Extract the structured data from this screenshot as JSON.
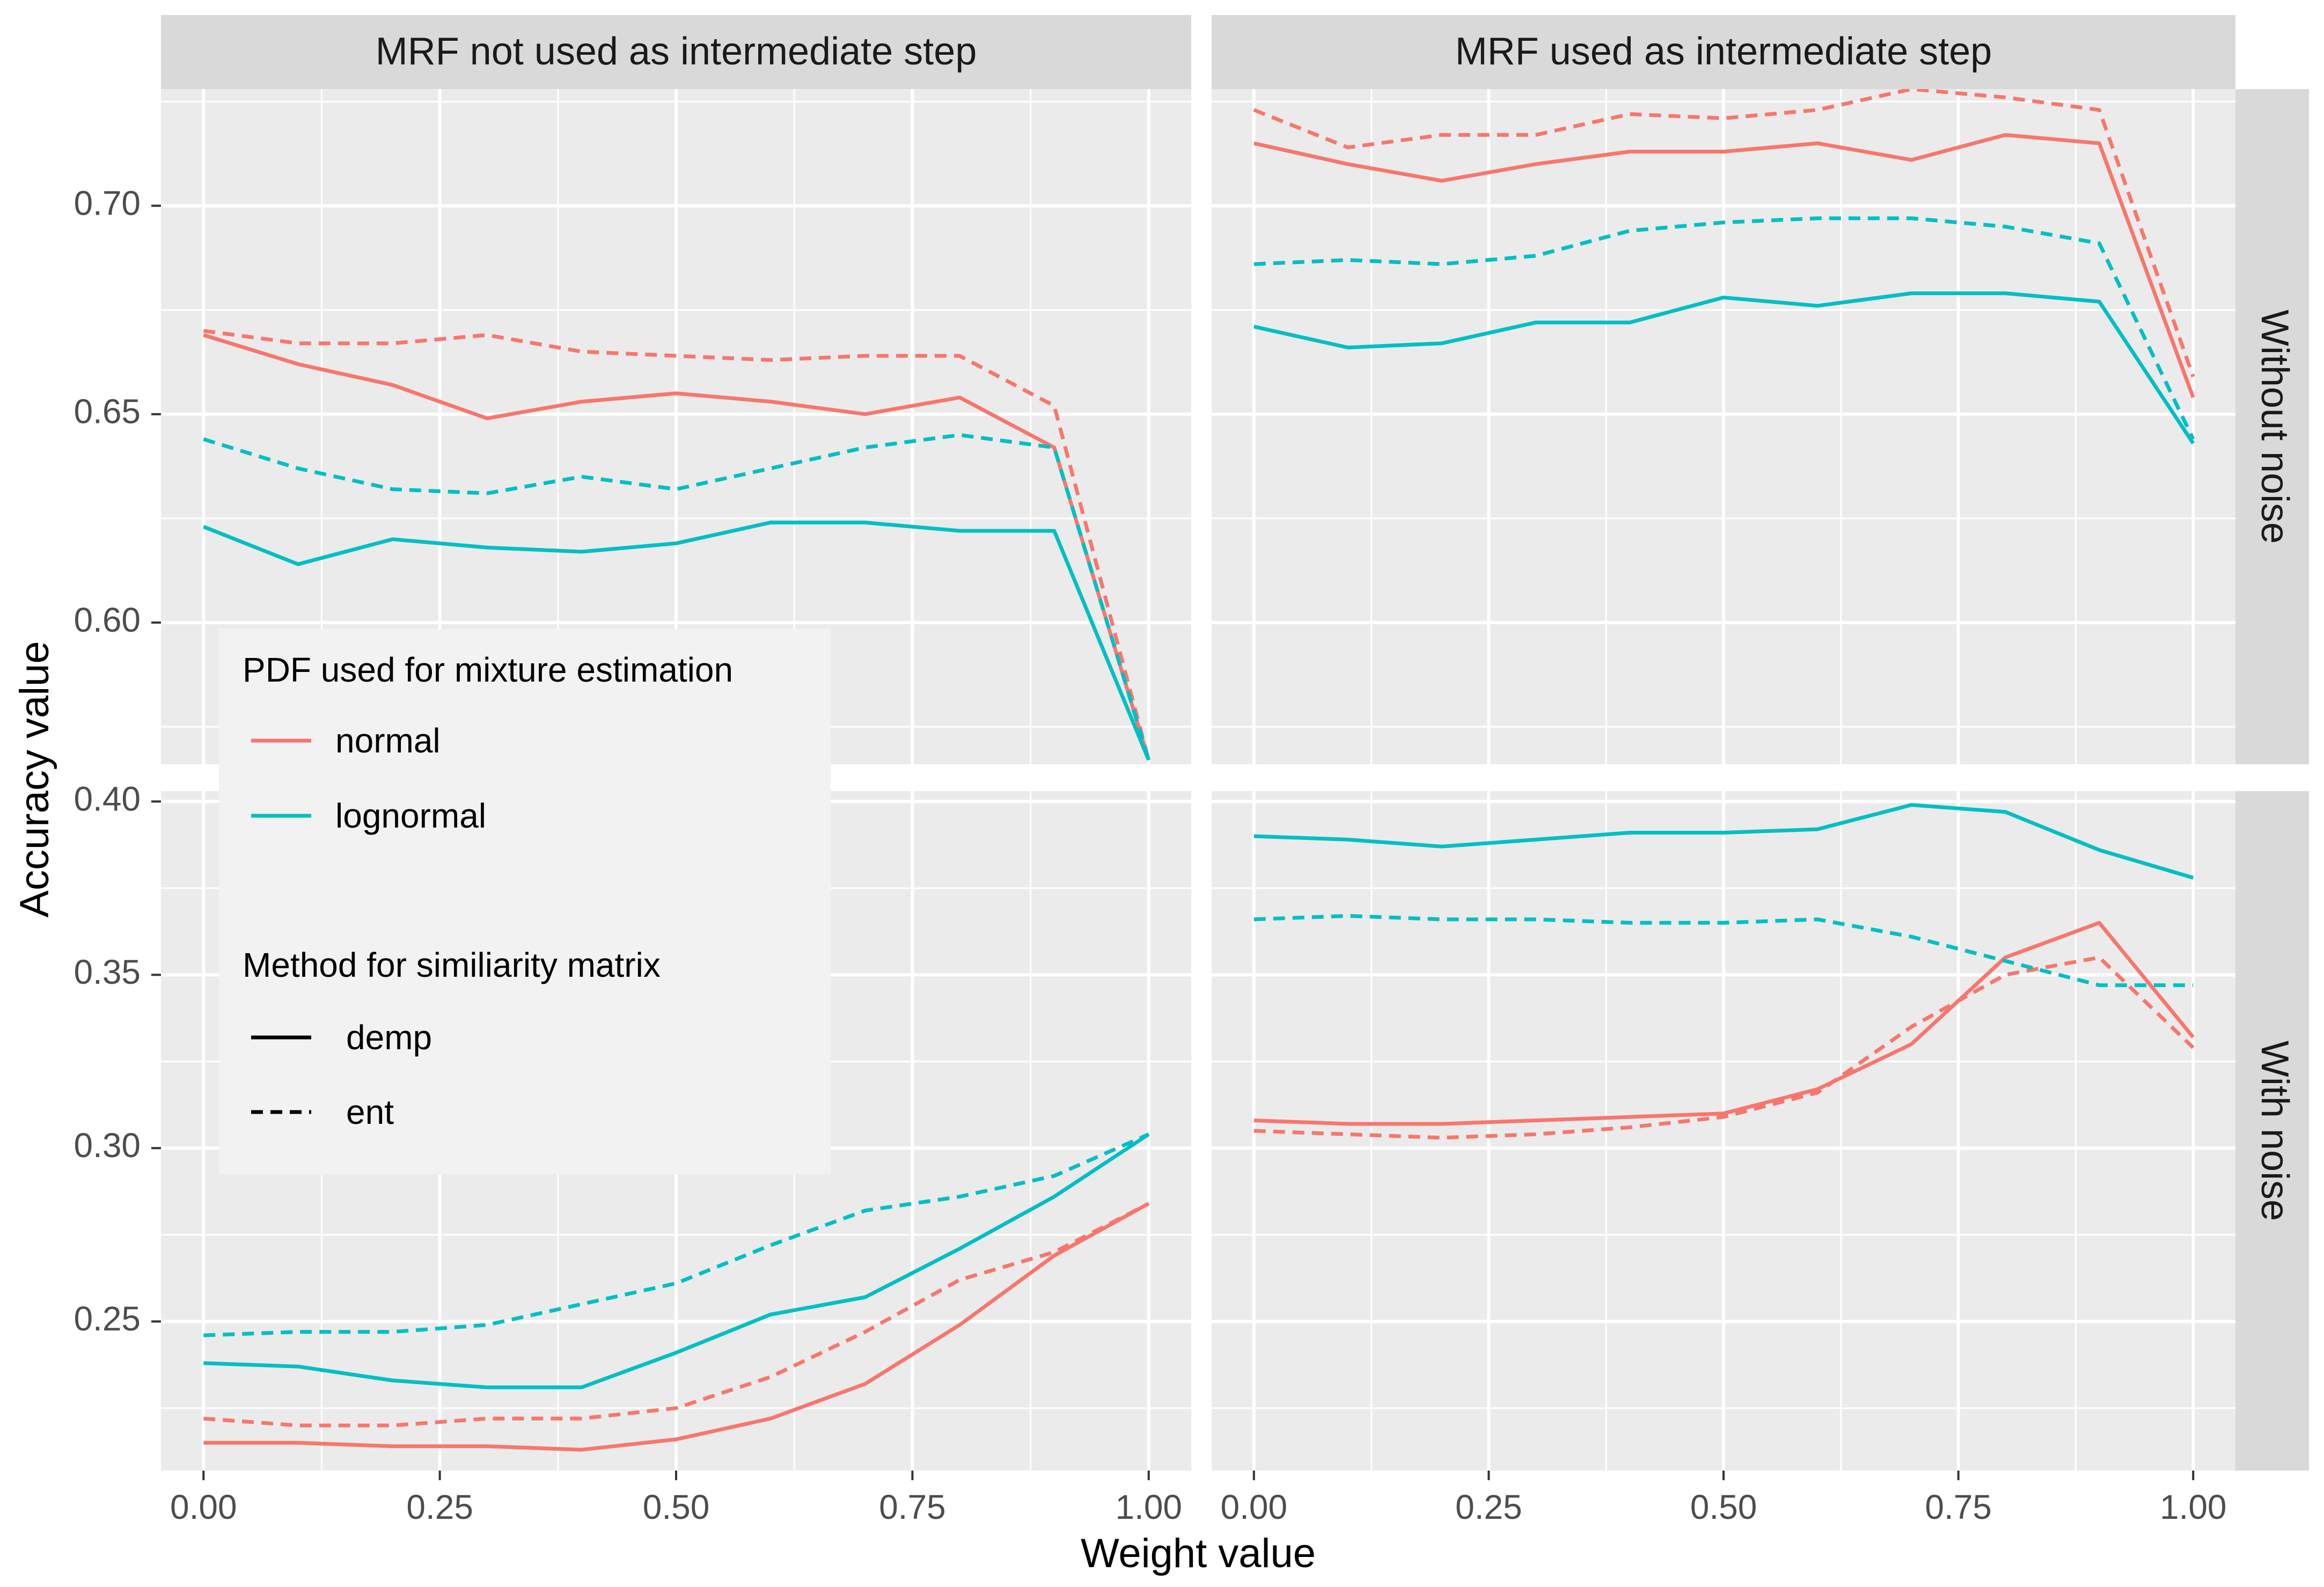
{
  "chart_data": {
    "type": "line",
    "xlabel": "Weight value",
    "ylabel": "Accuracy value",
    "columns": [
      "MRF not used as intermediate step",
      "MRF used as intermediate step"
    ],
    "rows": [
      "Without noise",
      "With noise"
    ],
    "x": [
      0.0,
      0.1,
      0.2,
      0.3,
      0.4,
      0.5,
      0.6,
      0.7,
      0.8,
      0.9,
      1.0
    ],
    "x_ticks": [
      "0.00",
      "0.25",
      "0.50",
      "0.75",
      "1.00"
    ],
    "x_tick_values": [
      0.0,
      0.25,
      0.5,
      0.75,
      1.0
    ],
    "xlim": [
      -0.045,
      1.045
    ],
    "row_scales": [
      {
        "ylim": [
          0.566,
          0.728
        ],
        "ticks": [
          "0.60",
          "0.65",
          "0.70"
        ],
        "tick_values": [
          0.6,
          0.65,
          0.7
        ]
      },
      {
        "ylim": [
          0.207,
          0.403
        ],
        "ticks": [
          "0.25",
          "0.30",
          "0.35",
          "0.40"
        ],
        "tick_values": [
          0.25,
          0.3,
          0.35,
          0.4
        ]
      }
    ],
    "colors": {
      "normal": "#F8766D",
      "lognormal": "#00BFC4"
    },
    "legend": {
      "pdf_title": "PDF used for mixture estimation",
      "pdf_items": [
        {
          "key": "normal",
          "label": "normal",
          "color": "#F8766D"
        },
        {
          "key": "lognormal",
          "label": "lognormal",
          "color": "#00BFC4"
        }
      ],
      "method_title": "Method for similiarity matrix",
      "method_items": [
        {
          "key": "demp",
          "label": "demp",
          "dash": "solid"
        },
        {
          "key": "ent",
          "label": "ent",
          "dash": "dashed"
        }
      ]
    },
    "panels": [
      {
        "column": 0,
        "row": 0,
        "series": [
          {
            "pdf": "normal",
            "method": "demp",
            "values": [
              0.669,
              0.662,
              0.657,
              0.649,
              0.653,
              0.655,
              0.653,
              0.65,
              0.654,
              0.642,
              0.567
            ]
          },
          {
            "pdf": "normal",
            "method": "ent",
            "values": [
              0.67,
              0.667,
              0.667,
              0.669,
              0.665,
              0.664,
              0.663,
              0.664,
              0.664,
              0.652,
              0.567
            ]
          },
          {
            "pdf": "lognormal",
            "method": "demp",
            "values": [
              0.623,
              0.614,
              0.62,
              0.618,
              0.617,
              0.619,
              0.624,
              0.624,
              0.622,
              0.622,
              0.567
            ]
          },
          {
            "pdf": "lognormal",
            "method": "ent",
            "values": [
              0.644,
              0.637,
              0.632,
              0.631,
              0.635,
              0.632,
              0.637,
              0.642,
              0.645,
              0.642,
              0.567
            ]
          }
        ]
      },
      {
        "column": 1,
        "row": 0,
        "series": [
          {
            "pdf": "normal",
            "method": "demp",
            "values": [
              0.715,
              0.71,
              0.706,
              0.71,
              0.713,
              0.713,
              0.715,
              0.711,
              0.717,
              0.715,
              0.654
            ]
          },
          {
            "pdf": "normal",
            "method": "ent",
            "values": [
              0.723,
              0.714,
              0.717,
              0.717,
              0.722,
              0.721,
              0.723,
              0.728,
              0.726,
              0.723,
              0.659
            ]
          },
          {
            "pdf": "lognormal",
            "method": "demp",
            "values": [
              0.671,
              0.666,
              0.667,
              0.672,
              0.672,
              0.678,
              0.676,
              0.679,
              0.679,
              0.677,
              0.643
            ]
          },
          {
            "pdf": "lognormal",
            "method": "ent",
            "values": [
              0.686,
              0.687,
              0.686,
              0.688,
              0.694,
              0.696,
              0.697,
              0.697,
              0.695,
              0.691,
              0.644
            ]
          }
        ]
      },
      {
        "column": 0,
        "row": 1,
        "series": [
          {
            "pdf": "normal",
            "method": "demp",
            "values": [
              0.215,
              0.215,
              0.214,
              0.214,
              0.213,
              0.216,
              0.222,
              0.232,
              0.249,
              0.269,
              0.284
            ]
          },
          {
            "pdf": "normal",
            "method": "ent",
            "values": [
              0.222,
              0.22,
              0.22,
              0.222,
              0.222,
              0.225,
              0.234,
              0.247,
              0.262,
              0.27,
              0.284
            ]
          },
          {
            "pdf": "lognormal",
            "method": "demp",
            "values": [
              0.238,
              0.237,
              0.233,
              0.231,
              0.231,
              0.241,
              0.252,
              0.257,
              0.271,
              0.286,
              0.304
            ]
          },
          {
            "pdf": "lognormal",
            "method": "ent",
            "values": [
              0.246,
              0.247,
              0.247,
              0.249,
              0.255,
              0.261,
              0.272,
              0.282,
              0.286,
              0.292,
              0.304
            ]
          }
        ]
      },
      {
        "column": 1,
        "row": 1,
        "series": [
          {
            "pdf": "normal",
            "method": "demp",
            "values": [
              0.308,
              0.307,
              0.307,
              0.308,
              0.309,
              0.31,
              0.317,
              0.33,
              0.355,
              0.365,
              0.332
            ]
          },
          {
            "pdf": "normal",
            "method": "ent",
            "values": [
              0.305,
              0.304,
              0.303,
              0.304,
              0.306,
              0.309,
              0.316,
              0.335,
              0.35,
              0.355,
              0.329
            ]
          },
          {
            "pdf": "lognormal",
            "method": "demp",
            "values": [
              0.39,
              0.389,
              0.387,
              0.389,
              0.391,
              0.391,
              0.392,
              0.399,
              0.397,
              0.386,
              0.378
            ]
          },
          {
            "pdf": "lognormal",
            "method": "ent",
            "values": [
              0.366,
              0.367,
              0.366,
              0.366,
              0.365,
              0.365,
              0.366,
              0.361,
              0.354,
              0.347,
              0.347
            ]
          }
        ]
      }
    ]
  }
}
